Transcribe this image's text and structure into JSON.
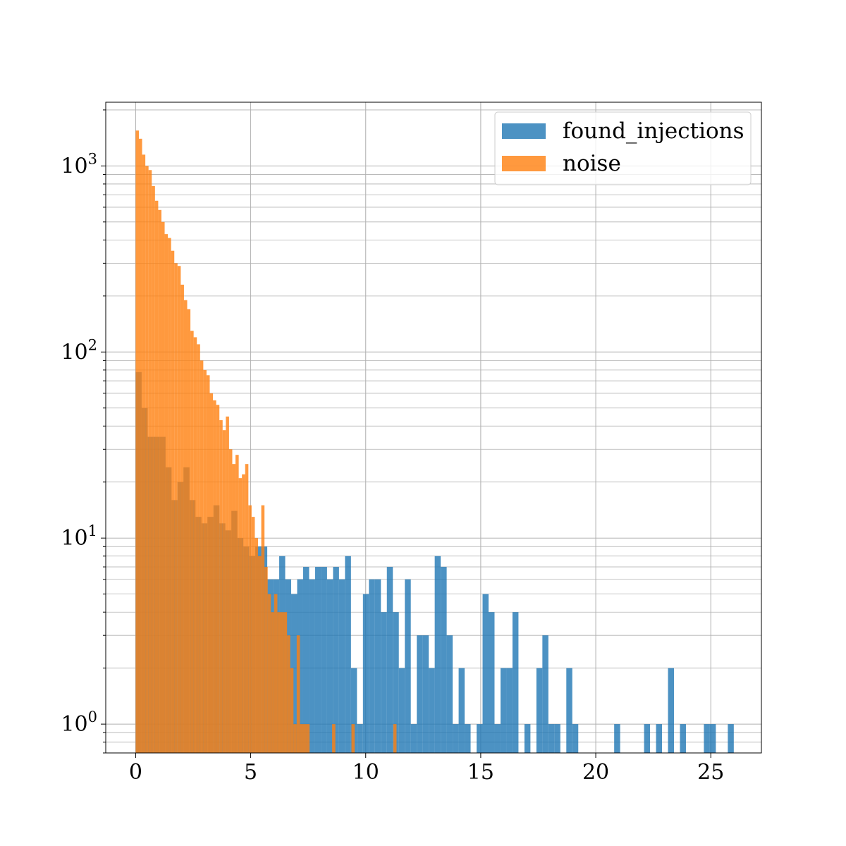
{
  "chart_data": {
    "type": "bar",
    "title": "",
    "xlabel": "",
    "ylabel": "",
    "xlim": [
      -1.3,
      27.2
    ],
    "ylim": [
      0.7,
      2200
    ],
    "yscale": "log",
    "grid": true,
    "legend_position": "top-right",
    "x_ticks": [
      0,
      5,
      10,
      15,
      20,
      25
    ],
    "x_tick_labels": [
      "0",
      "5",
      "10",
      "15",
      "20",
      "25"
    ],
    "y_ticks": [
      1,
      10,
      100,
      1000
    ],
    "y_tick_labels": [
      {
        "base": "10",
        "exp": "0"
      },
      {
        "base": "10",
        "exp": "1"
      },
      {
        "base": "10",
        "exp": "2"
      },
      {
        "base": "10",
        "exp": "3"
      }
    ],
    "series": [
      {
        "name": "found_injections",
        "color": "#1f77b4",
        "opacity": 0.8,
        "bin_width": 0.26,
        "bins": [
          [
            0.0,
            78
          ],
          [
            0.26,
            50
          ],
          [
            0.52,
            35
          ],
          [
            0.78,
            35
          ],
          [
            1.04,
            35
          ],
          [
            1.3,
            24
          ],
          [
            1.56,
            16
          ],
          [
            1.82,
            20
          ],
          [
            2.08,
            24
          ],
          [
            2.34,
            16
          ],
          [
            2.6,
            13
          ],
          [
            2.86,
            12
          ],
          [
            3.12,
            13
          ],
          [
            3.38,
            15
          ],
          [
            3.64,
            12
          ],
          [
            3.9,
            11
          ],
          [
            4.16,
            14
          ],
          [
            4.42,
            10
          ],
          [
            4.68,
            9
          ],
          [
            4.94,
            8
          ],
          [
            5.2,
            9
          ],
          [
            5.46,
            9
          ],
          [
            5.72,
            6
          ],
          [
            5.98,
            6
          ],
          [
            6.24,
            8
          ],
          [
            6.5,
            6
          ],
          [
            6.76,
            5
          ],
          [
            7.02,
            6
          ],
          [
            7.28,
            7
          ],
          [
            7.54,
            6
          ],
          [
            7.8,
            7
          ],
          [
            8.06,
            7
          ],
          [
            8.32,
            6
          ],
          [
            8.58,
            7
          ],
          [
            8.84,
            6
          ],
          [
            9.1,
            8
          ],
          [
            9.36,
            2
          ],
          [
            9.62,
            1
          ],
          [
            9.88,
            5
          ],
          [
            10.14,
            6
          ],
          [
            10.4,
            6
          ],
          [
            10.66,
            4
          ],
          [
            10.92,
            7
          ],
          [
            11.18,
            4
          ],
          [
            11.44,
            2
          ],
          [
            11.7,
            6
          ],
          [
            11.96,
            1
          ],
          [
            12.22,
            3
          ],
          [
            12.48,
            3
          ],
          [
            12.74,
            2
          ],
          [
            13.0,
            8
          ],
          [
            13.26,
            7
          ],
          [
            13.52,
            3
          ],
          [
            13.78,
            1
          ],
          [
            14.04,
            2
          ],
          [
            14.3,
            1
          ],
          [
            14.82,
            1
          ],
          [
            15.08,
            5
          ],
          [
            15.34,
            4
          ],
          [
            15.6,
            1
          ],
          [
            15.86,
            2
          ],
          [
            16.12,
            2
          ],
          [
            16.38,
            4
          ],
          [
            16.9,
            1
          ],
          [
            17.42,
            2
          ],
          [
            17.68,
            3
          ],
          [
            17.94,
            1
          ],
          [
            18.2,
            1
          ],
          [
            18.72,
            2
          ],
          [
            18.98,
            1
          ],
          [
            20.8,
            1
          ],
          [
            22.1,
            1
          ],
          [
            22.62,
            1
          ],
          [
            23.14,
            2
          ],
          [
            23.66,
            1
          ],
          [
            24.7,
            1
          ],
          [
            24.96,
            1
          ],
          [
            25.74,
            1
          ]
        ]
      },
      {
        "name": "noise",
        "color": "#ff7f0e",
        "opacity": 0.8,
        "bin_width": 0.14,
        "bins": [
          [
            0.0,
            1550
          ],
          [
            0.14,
            1400
          ],
          [
            0.28,
            1150
          ],
          [
            0.42,
            1000
          ],
          [
            0.56,
            950
          ],
          [
            0.7,
            780
          ],
          [
            0.84,
            650
          ],
          [
            0.98,
            580
          ],
          [
            1.12,
            500
          ],
          [
            1.26,
            430
          ],
          [
            1.4,
            410
          ],
          [
            1.54,
            350
          ],
          [
            1.68,
            300
          ],
          [
            1.82,
            290
          ],
          [
            1.96,
            230
          ],
          [
            2.1,
            190
          ],
          [
            2.24,
            170
          ],
          [
            2.38,
            130
          ],
          [
            2.52,
            120
          ],
          [
            2.66,
            110
          ],
          [
            2.8,
            90
          ],
          [
            2.94,
            80
          ],
          [
            3.08,
            75
          ],
          [
            3.22,
            60
          ],
          [
            3.36,
            55
          ],
          [
            3.5,
            52
          ],
          [
            3.64,
            43
          ],
          [
            3.78,
            38
          ],
          [
            3.92,
            45
          ],
          [
            4.06,
            30
          ],
          [
            4.2,
            25
          ],
          [
            4.34,
            28
          ],
          [
            4.48,
            21
          ],
          [
            4.62,
            22
          ],
          [
            4.76,
            25
          ],
          [
            4.9,
            15
          ],
          [
            5.04,
            13
          ],
          [
            5.18,
            10
          ],
          [
            5.32,
            8
          ],
          [
            5.46,
            15
          ],
          [
            5.6,
            7
          ],
          [
            5.74,
            5
          ],
          [
            5.88,
            4
          ],
          [
            6.02,
            5
          ],
          [
            6.16,
            4
          ],
          [
            6.3,
            4
          ],
          [
            6.44,
            4
          ],
          [
            6.58,
            3
          ],
          [
            6.72,
            2
          ],
          [
            6.86,
            1
          ],
          [
            7.0,
            3
          ],
          [
            7.14,
            1
          ],
          [
            7.28,
            1
          ],
          [
            7.42,
            1
          ],
          [
            8.54,
            1
          ],
          [
            9.38,
            1
          ],
          [
            11.2,
            1
          ]
        ]
      }
    ]
  }
}
